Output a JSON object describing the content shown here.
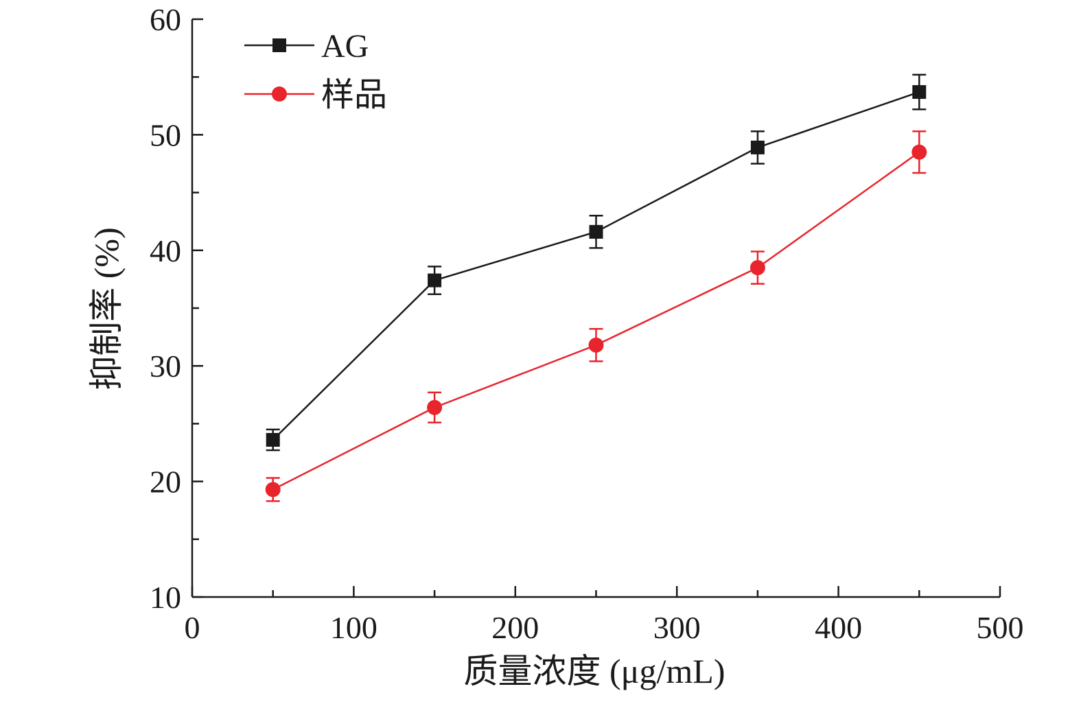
{
  "chart_data": {
    "type": "line",
    "xlabel": "质量浓度 (μg/mL)",
    "ylabel": "抑制率 (%)",
    "xlim": [
      0,
      500
    ],
    "ylim": [
      10,
      60
    ],
    "x_ticks": [
      0,
      100,
      200,
      300,
      400,
      500
    ],
    "x_tick_labels": [
      "0",
      "100",
      "200",
      "300",
      "400",
      "500"
    ],
    "y_ticks": [
      10,
      20,
      30,
      40,
      50,
      60
    ],
    "y_tick_labels": [
      "10",
      "20",
      "30",
      "40",
      "50",
      "60"
    ],
    "grid": false,
    "legend_position": "top-left",
    "x": [
      50,
      150,
      250,
      350,
      450
    ],
    "series": [
      {
        "name": "AG",
        "color": "#1a1a1a",
        "marker": "square",
        "values": [
          23.6,
          37.4,
          41.6,
          48.9,
          53.7
        ],
        "errors": [
          0.9,
          1.2,
          1.4,
          1.4,
          1.5
        ]
      },
      {
        "name": "样品",
        "color": "#e8242c",
        "marker": "circle",
        "values": [
          19.3,
          26.4,
          31.8,
          38.5,
          48.5
        ],
        "errors": [
          1.0,
          1.3,
          1.4,
          1.4,
          1.8
        ]
      }
    ]
  }
}
